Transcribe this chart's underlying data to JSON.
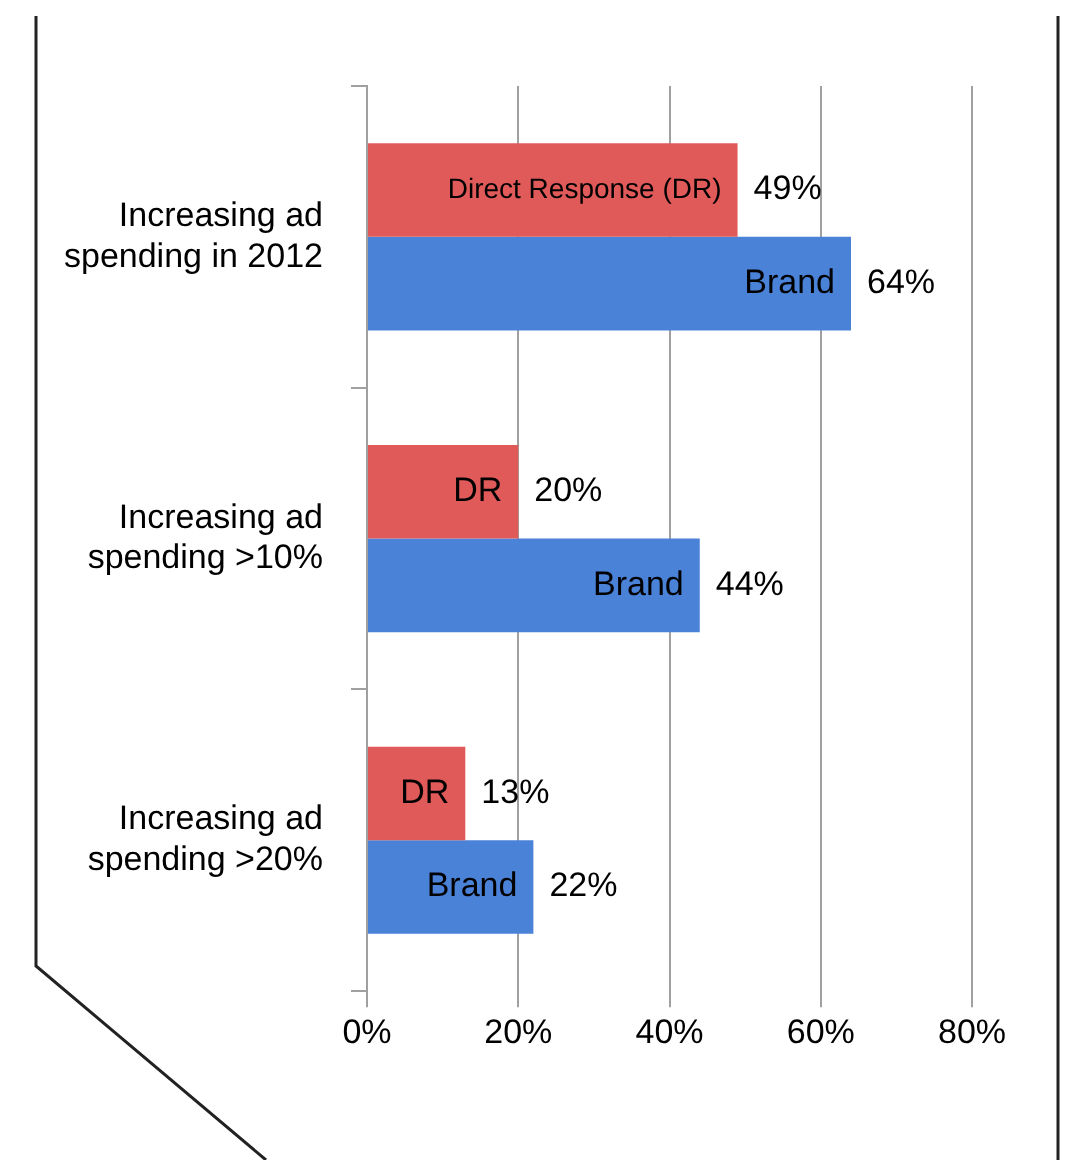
{
  "chart_data": {
    "type": "bar",
    "orientation": "horizontal",
    "categories": [
      "Increasing ad spending in 2012",
      "Increasing ad spending >10%",
      "Increasing ad spending >20%"
    ],
    "series": [
      {
        "color": "#e05a5a",
        "values": [
          49,
          20,
          13
        ],
        "value_labels": [
          "49%",
          "20%",
          "13%"
        ]
      },
      {
        "color": "#4a82d8",
        "values": [
          64,
          44,
          22
        ],
        "value_labels": [
          "64%",
          "44%",
          "22%"
        ]
      }
    ],
    "xlim": [
      0,
      80
    ],
    "xticks": [
      {
        "value": 0,
        "label": "0%"
      },
      {
        "value": 20,
        "label": "20%"
      },
      {
        "value": 40,
        "label": "40%"
      },
      {
        "value": 60,
        "label": "60%"
      },
      {
        "value": 80,
        "label": "80%"
      }
    ],
    "grid": "x",
    "legend": false,
    "annotations": [
      {
        "text": "Direct Response (DR)",
        "x": 49,
        "y": "Increasing ad spending in 2012"
      },
      {
        "text": "Brand",
        "x": 64,
        "y": "Increasing ad spending in 2012"
      },
      {
        "text": "DR",
        "x": 20,
        "y": "Increasing ad spending >10%"
      },
      {
        "text": "Brand",
        "x": 44,
        "y": "Increasing ad spending >10%"
      },
      {
        "text": "DR",
        "x": 13,
        "y": "Increasing ad spending >20%"
      },
      {
        "text": "Brand",
        "x": 22,
        "y": "Increasing ad spending >20%"
      }
    ]
  }
}
